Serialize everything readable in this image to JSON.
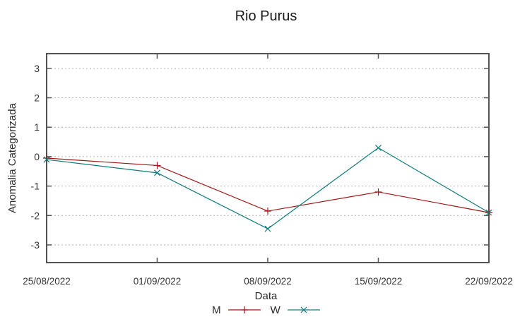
{
  "chart_data": {
    "type": "line",
    "title": "Rio Purus",
    "xlabel": "Data",
    "ylabel": "Anomalia Categorizada",
    "categories": [
      "25/08/2022",
      "01/09/2022",
      "08/09/2022",
      "15/09/2022",
      "22/09/2022"
    ],
    "y_ticks": [
      3,
      2,
      1,
      0,
      -1,
      -2,
      -3
    ],
    "ylim": [
      -3.6,
      3.5
    ],
    "grid": "horizontal-dotted",
    "legend_position": "bottom-center",
    "series": [
      {
        "name": "M",
        "color": "#a31414",
        "marker": "plus",
        "values": [
          -0.05,
          -0.3,
          -1.85,
          -1.2,
          -1.9
        ]
      },
      {
        "name": "W",
        "color": "#0e7a7a",
        "marker": "cross",
        "values": [
          -0.1,
          -0.55,
          -2.45,
          0.3,
          -1.9
        ]
      }
    ],
    "colors": {
      "border": "#545454",
      "grid": "#b3b3b3",
      "tick_text": "#333333"
    }
  }
}
